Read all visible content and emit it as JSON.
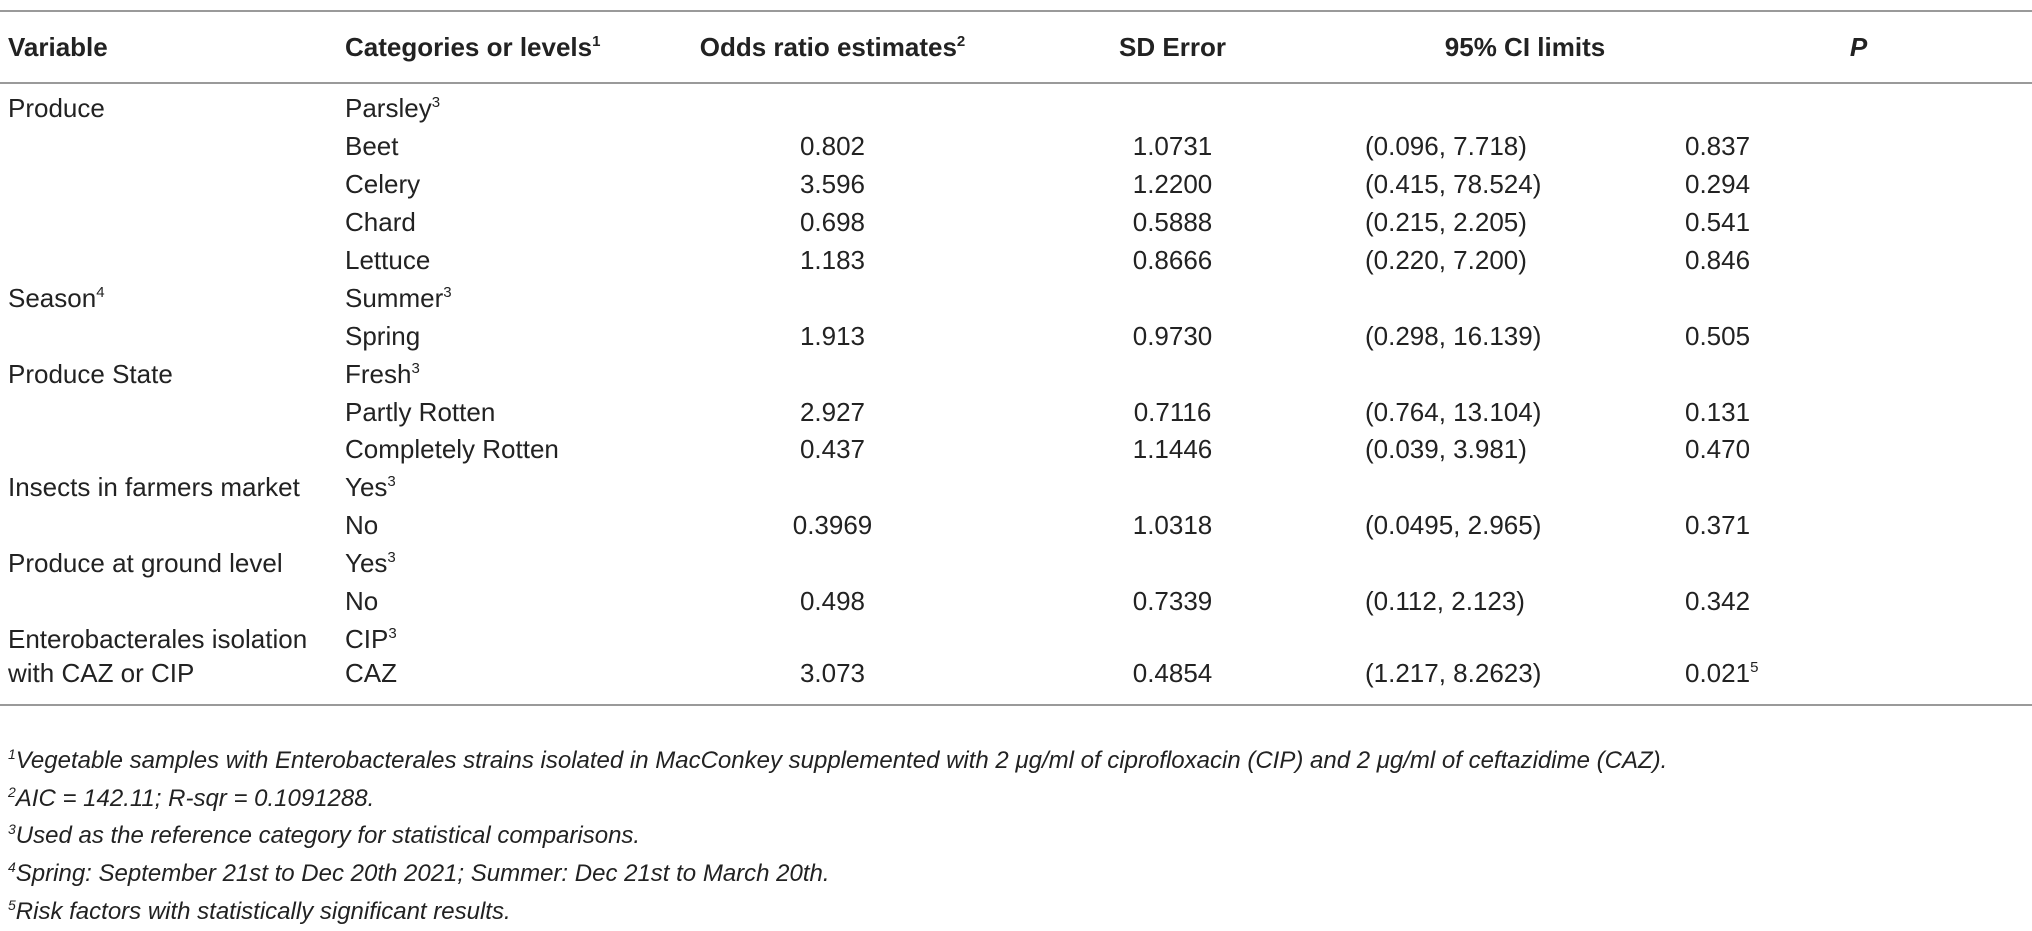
{
  "header": {
    "variable": "Variable",
    "categories": "Categories or levels",
    "categories_sup": "1",
    "odds_ratio": "Odds ratio estimates",
    "odds_ratio_sup": "2",
    "sd_error": "SD Error",
    "ci": "95% CI limits",
    "p": "P"
  },
  "rows": [
    {
      "variable": "Produce",
      "variable_sup": "",
      "category": "Parsley",
      "category_sup": "3",
      "or": "",
      "sd": "",
      "ci": "",
      "p": "",
      "p_sup": ""
    },
    {
      "variable": "",
      "variable_sup": "",
      "category": "Beet",
      "category_sup": "",
      "or": "0.802",
      "sd": "1.0731",
      "ci": "(0.096, 7.718)",
      "p": "0.837",
      "p_sup": ""
    },
    {
      "variable": "",
      "variable_sup": "",
      "category": "Celery",
      "category_sup": "",
      "or": "3.596",
      "sd": "1.2200",
      "ci": "(0.415, 78.524)",
      "p": "0.294",
      "p_sup": ""
    },
    {
      "variable": "",
      "variable_sup": "",
      "category": "Chard",
      "category_sup": "",
      "or": "0.698",
      "sd": "0.5888",
      "ci": "(0.215, 2.205)",
      "p": "0.541",
      "p_sup": ""
    },
    {
      "variable": "",
      "variable_sup": "",
      "category": "Lettuce",
      "category_sup": "",
      "or": "1.183",
      "sd": "0.8666",
      "ci": "(0.220, 7.200)",
      "p": "0.846",
      "p_sup": ""
    },
    {
      "variable": "Season",
      "variable_sup": "4",
      "category": "Summer",
      "category_sup": "3",
      "or": "",
      "sd": "",
      "ci": "",
      "p": "",
      "p_sup": ""
    },
    {
      "variable": "",
      "variable_sup": "",
      "category": "Spring",
      "category_sup": "",
      "or": "1.913",
      "sd": "0.9730",
      "ci": "(0.298, 16.139)",
      "p": "0.505",
      "p_sup": ""
    },
    {
      "variable": "Produce State",
      "variable_sup": "",
      "category": "Fresh",
      "category_sup": "3",
      "or": "",
      "sd": "",
      "ci": "",
      "p": "",
      "p_sup": ""
    },
    {
      "variable": "",
      "variable_sup": "",
      "category": "Partly Rotten",
      "category_sup": "",
      "or": "2.927",
      "sd": "0.7116",
      "ci": "(0.764, 13.104)",
      "p": "0.131",
      "p_sup": ""
    },
    {
      "variable": "",
      "variable_sup": "",
      "category": "Completely Rotten",
      "category_sup": "",
      "or": "0.437",
      "sd": "1.1446",
      "ci": "(0.039, 3.981)",
      "p": "0.470",
      "p_sup": ""
    },
    {
      "variable": "Insects in farmers market",
      "variable_sup": "",
      "category": "Yes",
      "category_sup": "3",
      "or": "",
      "sd": "",
      "ci": "",
      "p": "",
      "p_sup": ""
    },
    {
      "variable": "",
      "variable_sup": "",
      "category": "No",
      "category_sup": "",
      "or": "0.3969",
      "sd": "1.0318",
      "ci": "(0.0495, 2.965)",
      "p": "0.371",
      "p_sup": ""
    },
    {
      "variable": "Produce at ground level",
      "variable_sup": "",
      "category": "Yes",
      "category_sup": "3",
      "or": "",
      "sd": "",
      "ci": "",
      "p": "",
      "p_sup": ""
    },
    {
      "variable": "",
      "variable_sup": "",
      "category": "No",
      "category_sup": "",
      "or": "0.498",
      "sd": "0.7339",
      "ci": "(0.112, 2.123)",
      "p": "0.342",
      "p_sup": ""
    },
    {
      "variable": "Enterobacterales isolation",
      "variable_sup": "",
      "category": "CIP",
      "category_sup": "3",
      "or": "",
      "sd": "",
      "ci": "",
      "p": "",
      "p_sup": ""
    },
    {
      "variable": "with CAZ or CIP",
      "variable_sup": "",
      "category": "CAZ",
      "category_sup": "",
      "or": "3.073",
      "sd": "0.4854",
      "ci": "(1.217, 8.2623)",
      "p": "0.021",
      "p_sup": "5"
    }
  ],
  "footnotes": [
    {
      "mark": "1",
      "text": "Vegetable samples with Enterobacterales strains isolated in MacConkey supplemented with 2 μg/ml of ciprofloxacin (CIP) and 2 μg/ml of ceftazidime (CAZ)."
    },
    {
      "mark": "2",
      "text": "AIC = 142.11; R-sqr = 0.1091288."
    },
    {
      "mark": "3",
      "text": "Used as the reference category for statistical comparisons."
    },
    {
      "mark": "4",
      "text": "Spring: September 21st to Dec 20th 2021; Summer: Dec 21st to March 20th."
    },
    {
      "mark": "5",
      "text": "Risk factors with statistically significant results."
    }
  ]
}
